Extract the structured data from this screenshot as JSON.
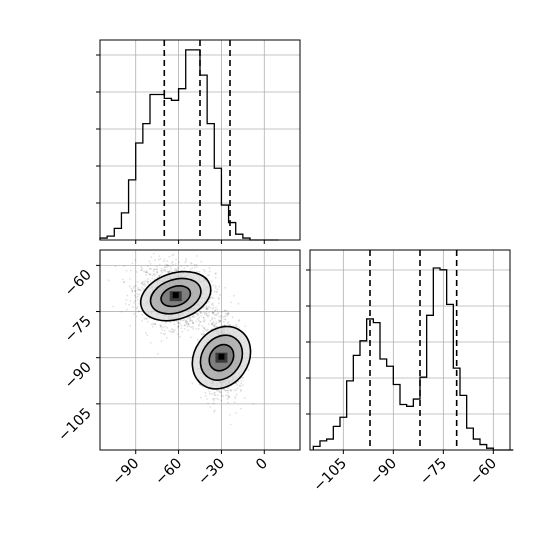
{
  "chart_data": [
    {
      "type": "histogram",
      "panel": "top-left",
      "variable_range": [
        -115,
        25
      ],
      "bin_edges": [
        -115,
        -110,
        -105,
        -100,
        -95,
        -90,
        -85,
        -80,
        -75,
        -70,
        -65,
        -60,
        -55,
        -50,
        -45,
        -40,
        -35,
        -30,
        -25,
        -20,
        -15,
        -10,
        -5,
        0,
        5,
        10
      ],
      "counts": [
        1,
        2,
        6,
        14,
        31,
        50,
        60,
        75,
        75,
        73,
        72,
        78,
        98,
        98,
        85,
        60,
        37,
        18,
        9,
        3,
        1,
        0,
        0,
        0,
        0
      ],
      "quantile_lines": [
        -70,
        -45,
        -24
      ],
      "grid": true,
      "x_tick_values": [
        -90,
        -60,
        -30,
        0
      ],
      "y_tick_marks": 5,
      "show_tick_labels": false
    },
    {
      "type": "density-contour",
      "panel": "bottom-left",
      "xlim": [
        -115,
        25
      ],
      "ylim": [
        -120,
        -55
      ],
      "x_tick_labels": [
        "−90",
        "−60",
        "−30",
        "0"
      ],
      "x_tick_values": [
        -90,
        -60,
        -30,
        0
      ],
      "y_tick_labels": [
        "−60",
        "−75",
        "−90",
        "−105"
      ],
      "y_tick_values": [
        -60,
        -75,
        -90,
        -105
      ],
      "grid": true,
      "clusters": [
        {
          "center_x": -62,
          "center_y": -70,
          "sigma_x": 13,
          "sigma_y": 5,
          "rotation_deg": -15,
          "points": 1700
        },
        {
          "center_x": -30,
          "center_y": -90,
          "sigma_x": 9,
          "sigma_y": 8,
          "rotation_deg": -50,
          "points": 1700
        }
      ],
      "contour_fractions": [
        0.393,
        0.865,
        0.989
      ]
    },
    {
      "type": "histogram",
      "panel": "bottom-right",
      "variable_range": [
        -115,
        -55
      ],
      "bin_edges": [
        -114,
        -112,
        -110,
        -108,
        -106,
        -104,
        -102,
        -100,
        -98,
        -96,
        -94,
        -92,
        -90,
        -88,
        -86,
        -84,
        -82,
        -80,
        -78,
        -76,
        -74,
        -72,
        -70,
        -68,
        -66,
        -64,
        -62,
        -60,
        -58,
        -56,
        -54
      ],
      "counts": [
        2,
        5,
        6,
        13,
        18,
        38,
        52,
        60,
        72,
        70,
        50,
        46,
        36,
        25,
        24,
        28,
        40,
        74,
        100,
        99,
        80,
        45,
        30,
        12,
        6,
        3,
        1,
        0,
        0,
        0
      ],
      "quantile_lines": [
        -97,
        -82,
        -71
      ],
      "grid": true,
      "x_tick_labels": [
        "−105",
        "−90",
        "−75",
        "−60"
      ],
      "x_tick_values": [
        -105,
        -90,
        -75,
        -60
      ],
      "y_tick_marks": 5,
      "show_y_tick_labels": false
    }
  ]
}
